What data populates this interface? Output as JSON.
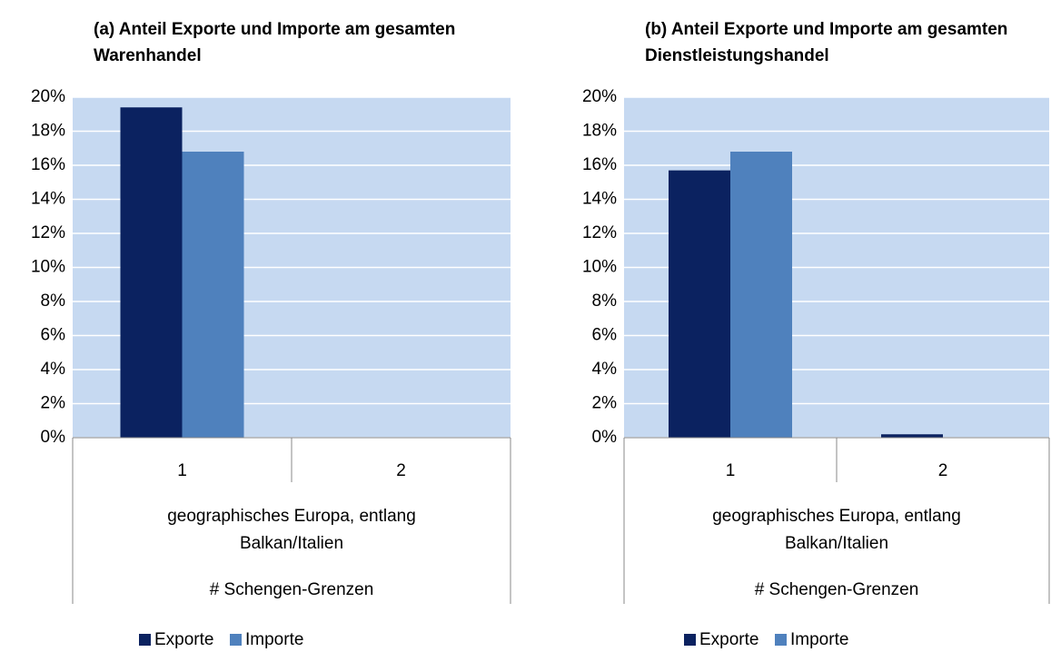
{
  "chart_data": [
    {
      "type": "bar",
      "title": "(a) Anteil Exporte und Importe am gesamten Warenhandel",
      "categories": [
        "1",
        "2"
      ],
      "group_label": "geographisches Europa, entlang Balkan/Italien",
      "x_label": "# Schengen-Grenzen",
      "series": [
        {
          "name": "Exporte",
          "color": "#0b2260",
          "values": [
            19.4,
            0
          ]
        },
        {
          "name": "Importe",
          "color": "#4f81bd",
          "values": [
            16.8,
            0
          ]
        }
      ],
      "ylim": [
        0,
        20
      ],
      "yticks": [
        {
          "value": 0,
          "label": "0%"
        },
        {
          "value": 2,
          "label": "2%"
        },
        {
          "value": 4,
          "label": "4%"
        },
        {
          "value": 6,
          "label": "6%"
        },
        {
          "value": 8,
          "label": "8%"
        },
        {
          "value": 10,
          "label": "10%"
        },
        {
          "value": 12,
          "label": "12%"
        },
        {
          "value": 14,
          "label": "14%"
        },
        {
          "value": 16,
          "label": "16%"
        },
        {
          "value": 18,
          "label": "18%"
        },
        {
          "value": 20,
          "label": "20%"
        }
      ],
      "grid": true,
      "plot_background": "#c6d9f1",
      "legend": "bottom"
    },
    {
      "type": "bar",
      "title": "(b) Anteil Exporte und Importe am gesamten Dienstleistungshandel",
      "categories": [
        "1",
        "2"
      ],
      "group_label": "geographisches Europa, entlang Balkan/Italien",
      "x_label": "# Schengen-Grenzen",
      "series": [
        {
          "name": "Exporte",
          "color": "#0b2260",
          "values": [
            15.7,
            0.2
          ]
        },
        {
          "name": "Importe",
          "color": "#4f81bd",
          "values": [
            16.8,
            0
          ]
        }
      ],
      "ylim": [
        0,
        20
      ],
      "yticks": [
        {
          "value": 0,
          "label": "0%"
        },
        {
          "value": 2,
          "label": "2%"
        },
        {
          "value": 4,
          "label": "4%"
        },
        {
          "value": 6,
          "label": "6%"
        },
        {
          "value": 8,
          "label": "8%"
        },
        {
          "value": 10,
          "label": "10%"
        },
        {
          "value": 12,
          "label": "12%"
        },
        {
          "value": 14,
          "label": "14%"
        },
        {
          "value": 16,
          "label": "16%"
        },
        {
          "value": 18,
          "label": "18%"
        },
        {
          "value": 20,
          "label": "20%"
        }
      ],
      "grid": true,
      "plot_background": "#c6d9f1",
      "legend": "bottom"
    }
  ]
}
